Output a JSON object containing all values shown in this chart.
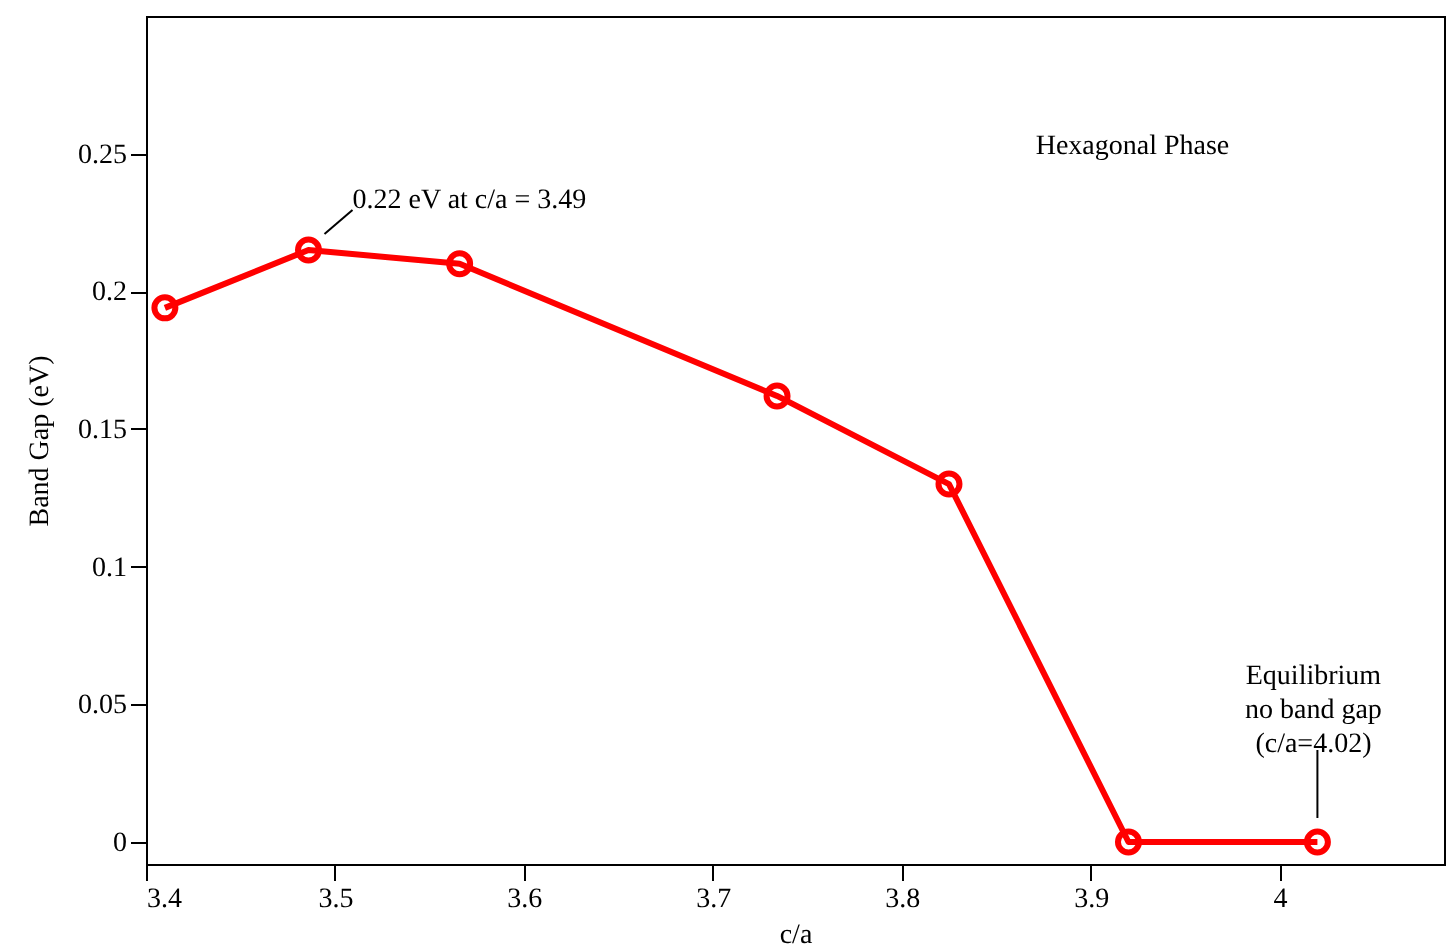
{
  "chart_data": {
    "type": "line",
    "xlabel": "c/a",
    "ylabel": "Band Gap (eV)",
    "x": [
      3.41,
      3.486,
      3.566,
      3.734,
      3.825,
      3.92,
      4.02
    ],
    "series": [
      {
        "color": "#ff0000",
        "values": [
          0.194,
          0.215,
          0.21,
          0.162,
          0.13,
          0,
          0
        ]
      }
    ],
    "xlim": [
      3.4,
      4.087
    ],
    "ylim": [
      -0.008,
      0.3
    ],
    "xticks": [
      3.4,
      3.5,
      3.6,
      3.7,
      3.8,
      3.9,
      4
    ],
    "yticks": [
      0,
      0.05,
      0.1,
      0.15,
      0.2,
      0.25
    ],
    "grid": false,
    "marker": "circle",
    "line_style": "solid",
    "annotations": [
      "Hexagonal Phase",
      {
        "text": "0.22 eV at c/a = 3.49",
        "x": 3.486,
        "y": 0.215
      },
      {
        "text": "Equilibrium\nno band gap\n(c/a=4.02)",
        "x": 4.02,
        "y": 0
      }
    ]
  }
}
